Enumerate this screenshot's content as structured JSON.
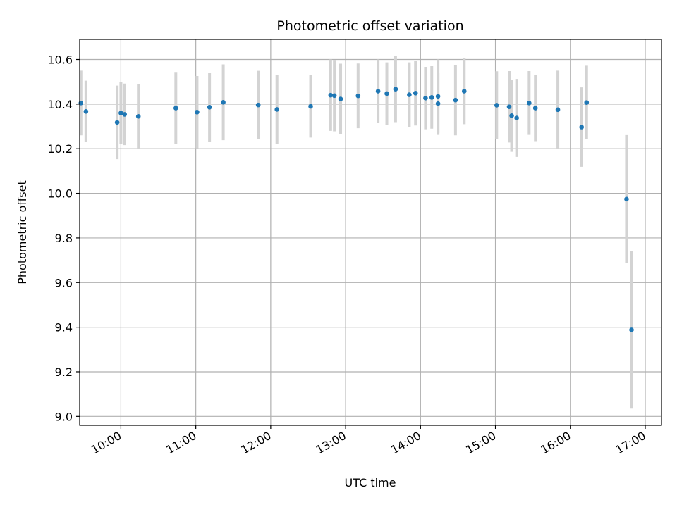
{
  "chart_data": {
    "type": "scatter",
    "title": "Photometric offset variation",
    "xlabel": "UTC time",
    "ylabel": "Photometric offset",
    "x_ticks": [
      "10:00",
      "11:00",
      "12:00",
      "13:00",
      "14:00",
      "15:00",
      "16:00",
      "17:00"
    ],
    "y_ticks": [
      "9.0",
      "9.2",
      "9.4",
      "9.6",
      "9.8",
      "10.0",
      "10.2",
      "10.4",
      "10.6"
    ],
    "xlim": [
      "09:27",
      "17:13"
    ],
    "ylim": [
      8.96,
      10.69
    ],
    "grid": true,
    "colors": {
      "marker": "#1f77b4",
      "errorbar": "#d3d3d3",
      "grid": "#b0b0b0"
    },
    "series": [
      {
        "points": [
          {
            "x": "09:28",
            "y": 10.405,
            "err": 0.145
          },
          {
            "x": "09:32",
            "y": 10.367,
            "err": 0.138
          },
          {
            "x": "09:57",
            "y": 10.318,
            "err": 0.165
          },
          {
            "x": "10:00",
            "y": 10.36,
            "err": 0.14
          },
          {
            "x": "10:03",
            "y": 10.354,
            "err": 0.138
          },
          {
            "x": "10:14",
            "y": 10.345,
            "err": 0.145
          },
          {
            "x": "10:44",
            "y": 10.382,
            "err": 0.162
          },
          {
            "x": "11:01",
            "y": 10.364,
            "err": 0.162
          },
          {
            "x": "11:11",
            "y": 10.386,
            "err": 0.155
          },
          {
            "x": "11:22",
            "y": 10.408,
            "err": 0.17
          },
          {
            "x": "11:50",
            "y": 10.396,
            "err": 0.153
          },
          {
            "x": "12:05",
            "y": 10.376,
            "err": 0.155
          },
          {
            "x": "12:32",
            "y": 10.39,
            "err": 0.14
          },
          {
            "x": "12:48",
            "y": 10.44,
            "err": 0.16
          },
          {
            "x": "12:51",
            "y": 10.438,
            "err": 0.16
          },
          {
            "x": "12:56",
            "y": 10.423,
            "err": 0.158
          },
          {
            "x": "13:10",
            "y": 10.437,
            "err": 0.145
          },
          {
            "x": "13:26",
            "y": 10.458,
            "err": 0.142
          },
          {
            "x": "13:33",
            "y": 10.447,
            "err": 0.14
          },
          {
            "x": "13:40",
            "y": 10.467,
            "err": 0.148
          },
          {
            "x": "13:51",
            "y": 10.442,
            "err": 0.145
          },
          {
            "x": "13:56",
            "y": 10.449,
            "err": 0.145
          },
          {
            "x": "14:04",
            "y": 10.427,
            "err": 0.14
          },
          {
            "x": "14:09",
            "y": 10.43,
            "err": 0.14
          },
          {
            "x": "14:14",
            "y": 10.402,
            "err": 0.14
          },
          {
            "x": "14:14",
            "y": 10.435,
            "err": 0.165
          },
          {
            "x": "14:28",
            "y": 10.418,
            "err": 0.158
          },
          {
            "x": "14:35",
            "y": 10.458,
            "err": 0.148
          },
          {
            "x": "15:01",
            "y": 10.395,
            "err": 0.152
          },
          {
            "x": "15:11",
            "y": 10.388,
            "err": 0.16
          },
          {
            "x": "15:13",
            "y": 10.348,
            "err": 0.162
          },
          {
            "x": "15:17",
            "y": 10.338,
            "err": 0.175
          },
          {
            "x": "15:27",
            "y": 10.405,
            "err": 0.143
          },
          {
            "x": "15:32",
            "y": 10.382,
            "err": 0.148
          },
          {
            "x": "15:50",
            "y": 10.375,
            "err": 0.175
          },
          {
            "x": "16:09",
            "y": 10.297,
            "err": 0.178
          },
          {
            "x": "16:13",
            "y": 10.407,
            "err": 0.165
          },
          {
            "x": "16:45",
            "y": 9.974,
            "err": 0.287
          },
          {
            "x": "16:49",
            "y": 9.388,
            "err": 0.353
          }
        ]
      }
    ]
  }
}
